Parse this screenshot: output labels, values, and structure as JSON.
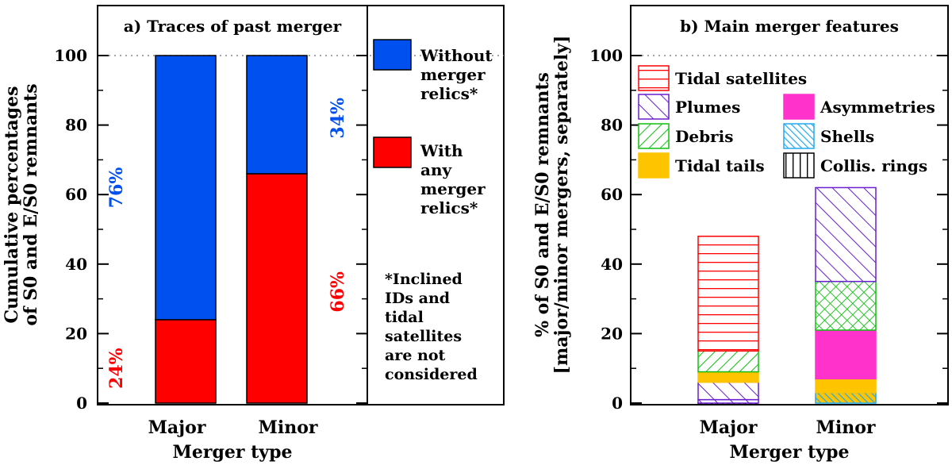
{
  "chart_data": [
    {
      "type": "bar",
      "stacked": true,
      "title": "a) Traces of past merger",
      "xlabel": "Merger type",
      "ylabel_lines": [
        "Cumulative percentages",
        "of S0 and E/S0 remnants"
      ],
      "categories": [
        "Major",
        "Minor"
      ],
      "ylim": [
        0,
        110
      ],
      "yticks": [
        0,
        20,
        40,
        60,
        80,
        100
      ],
      "reference_line": 100,
      "series": [
        {
          "name": "With any merger relics*",
          "color": "#ff0000",
          "values": [
            24,
            66
          ]
        },
        {
          "name": "Without merger relics*",
          "color": "#0050f0",
          "values": [
            76,
            34
          ]
        }
      ],
      "pct_labels": [
        {
          "text": "76%",
          "color": "#0050f0",
          "category": "Major",
          "y": 62,
          "side": "left"
        },
        {
          "text": "24%",
          "color": "#ff0000",
          "category": "Major",
          "y": 10,
          "side": "left"
        },
        {
          "text": "34%",
          "color": "#0050f0",
          "category": "Minor",
          "y": 82,
          "side": "right"
        },
        {
          "text": "66%",
          "color": "#ff0000",
          "category": "Minor",
          "y": 32,
          "side": "right"
        }
      ],
      "legend": [
        {
          "color": "#0050f0",
          "lines": [
            "Without",
            "merger",
            "relics*"
          ]
        },
        {
          "color": "#ff0000",
          "lines": [
            "With",
            "any",
            "merger",
            "relics*"
          ]
        }
      ],
      "note_lines": [
        "*Inclined",
        "IDs and",
        "tidal",
        "satellites",
        "are not",
        "considered"
      ]
    },
    {
      "type": "bar",
      "stacked": true,
      "title": "b) Main merger features",
      "xlabel": "Merger type",
      "ylabel_lines": [
        "% of S0 and E/S0 remnants",
        "[major/minor mergers, separately]"
      ],
      "categories": [
        "Major",
        "Minor"
      ],
      "ylim": [
        0,
        110
      ],
      "yticks": [
        0,
        20,
        40,
        60,
        80,
        100
      ],
      "reference_line": 100,
      "features": [
        {
          "name": "Tidal satellites",
          "color": "#ff0000",
          "pattern": "horizontal"
        },
        {
          "name": "Plumes",
          "color": "#6a1fd0",
          "pattern": "diagonal"
        },
        {
          "name": "Asymmetries",
          "color": "#ff33cc",
          "pattern": "solid"
        },
        {
          "name": "Debris",
          "color": "#10c010",
          "pattern": "backdiag"
        },
        {
          "name": "Shells",
          "color": "#22aaee",
          "pattern": "diagonal-dense"
        },
        {
          "name": "Tidal tails",
          "color": "#ffc400",
          "pattern": "solid"
        },
        {
          "name": "Collis. rings",
          "color": "#000000",
          "pattern": "vertical"
        }
      ],
      "stacks": [
        {
          "category": "Major",
          "segments": [
            {
              "feature": "Collis. rings",
              "value": 0
            },
            {
              "feature": "Plumes",
              "value": 1
            },
            {
              "feature": "Plumes",
              "value": 5
            },
            {
              "feature": "Tidal tails",
              "value": 3
            },
            {
              "feature": "Debris",
              "value": 6
            },
            {
              "feature": "Tidal satellites",
              "value": 33
            }
          ]
        },
        {
          "category": "Minor",
          "segments": [
            {
              "feature": "Shells",
              "value": 3
            },
            {
              "feature": "Tidal tails",
              "value": 4
            },
            {
              "feature": "Asymmetries",
              "value": 14
            },
            {
              "feature": "Debris",
              "value": 14
            },
            {
              "feature": "Plumes",
              "value": 27
            }
          ]
        }
      ]
    }
  ]
}
